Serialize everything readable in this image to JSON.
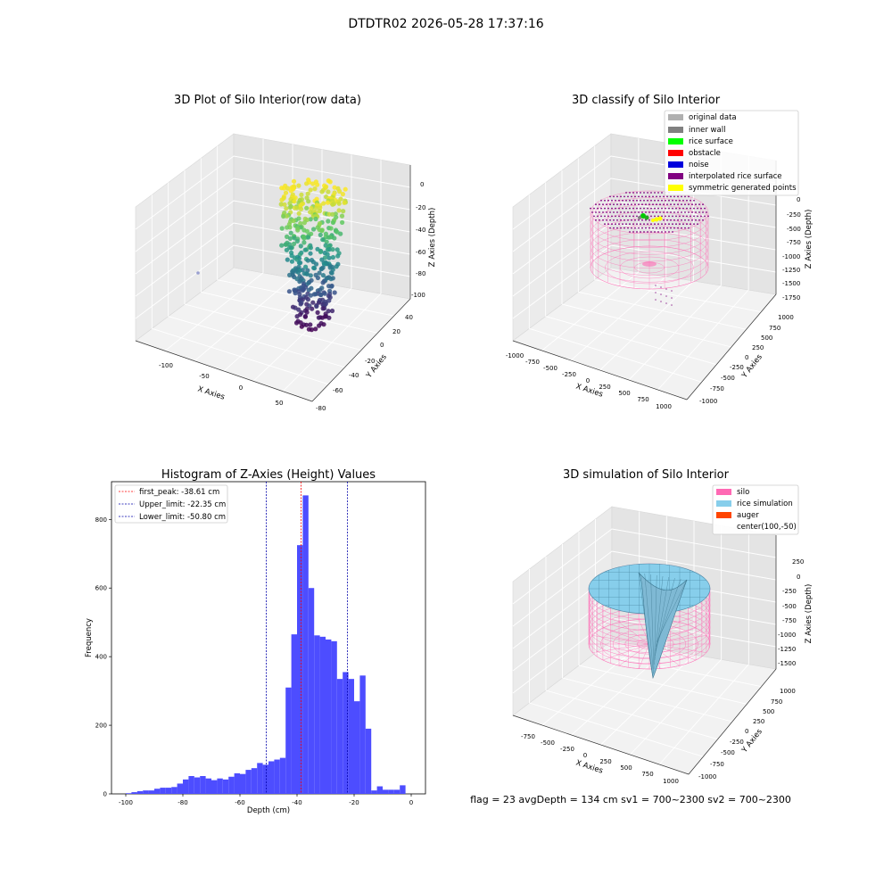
{
  "suptitle": "DTDTR02 2026-05-28 17:37:16",
  "footer": "flag = 23  avgDepth = 134 cm  sv1 = 700~2300  sv2 = 700~2300",
  "colors": {
    "hist_bar": "#4d4dff",
    "first_peak_line": "#ff0000",
    "limit_line": "#0000aa",
    "silo_wire": "#ff69b4",
    "rice_sim": "#87ceeb",
    "auger": "#ff4500"
  },
  "chart_data": [
    {
      "type": "scatter",
      "title": "3D Plot of Silo Interior(row data)",
      "xlabel": "X Axies",
      "ylabel": "Y Axies",
      "zlabel": "Z Axies (Depth)",
      "xticks": [
        "-100",
        "-50",
        "0",
        "50"
      ],
      "yticks": [
        "40",
        "20",
        "0",
        "-20",
        "-40",
        "-60",
        "-80"
      ],
      "zticks": [
        "0",
        "-20",
        "-40",
        "-60",
        "-80",
        "-100"
      ],
      "xlim": [
        -130,
        70
      ],
      "ylim": [
        -80,
        40
      ],
      "zlim": [
        -110,
        0
      ],
      "colormap": "viridis"
    },
    {
      "type": "scatter",
      "title": "3D classify of Silo Interior",
      "xlabel": "X Axies",
      "ylabel": "Y Axies",
      "zlabel": "Z Axies (Depth)",
      "xticks": [
        "-1000",
        "-750",
        "-500",
        "-250",
        "0",
        "250",
        "500",
        "750",
        "1000"
      ],
      "yticks": [
        "1000",
        "750",
        "500",
        "250",
        "0",
        "-250",
        "-500",
        "-750",
        "-1000"
      ],
      "zticks": [
        "0",
        "-250",
        "-500",
        "-750",
        "-1000",
        "-1250",
        "-1500",
        "-1750"
      ],
      "legend": [
        {
          "label": "original data",
          "color": "#b0b0b0"
        },
        {
          "label": "inner wall",
          "color": "#808080"
        },
        {
          "label": "rice surface",
          "color": "#00ff00"
        },
        {
          "label": "obstacle",
          "color": "#ff0000"
        },
        {
          "label": "noise",
          "color": "#0000dd"
        },
        {
          "label": "interpolated rice surface",
          "color": "#800080"
        },
        {
          "label": "symmetric generated points",
          "color": "#ffff00"
        }
      ],
      "legend_position": "top-right"
    },
    {
      "type": "bar",
      "title": "Histogram of Z-Axies (Height) Values",
      "xlabel": "Depth (cm)",
      "ylabel": "Frequency",
      "xlim": [
        -105,
        5
      ],
      "ylim": [
        0,
        910
      ],
      "xticks": [
        -100,
        -80,
        -60,
        -40,
        -20,
        0
      ],
      "yticks": [
        0,
        200,
        400,
        600,
        800
      ],
      "bin_width": 2,
      "bin_starts": [
        -100,
        -98,
        -96,
        -94,
        -92,
        -90,
        -88,
        -86,
        -84,
        -82,
        -80,
        -78,
        -76,
        -74,
        -72,
        -70,
        -68,
        -66,
        -64,
        -62,
        -60,
        -58,
        -56,
        -54,
        -52,
        -50,
        -48,
        -46,
        -44,
        -42,
        -40,
        -38,
        -36,
        -34,
        -32,
        -30,
        -28,
        -26,
        -24,
        -22,
        -20,
        -18,
        -16,
        -14,
        -12,
        -10,
        -8,
        -6,
        -4,
        -2,
        0
      ],
      "values": [
        2,
        5,
        8,
        10,
        10,
        15,
        18,
        18,
        20,
        30,
        42,
        52,
        48,
        52,
        45,
        40,
        45,
        42,
        50,
        60,
        58,
        70,
        75,
        90,
        85,
        95,
        100,
        105,
        310,
        465,
        725,
        870,
        600,
        462,
        458,
        450,
        445,
        335,
        355,
        335,
        270,
        345,
        190,
        10,
        22,
        12,
        12,
        12,
        25,
        0,
        0
      ],
      "vlines": [
        {
          "label": "first_peak: -38.61 cm",
          "x": -38.61,
          "color": "#ff0000"
        },
        {
          "label": "Upper_limit: -22.35 cm",
          "x": -22.35,
          "color": "#0000aa"
        },
        {
          "label": "Lower_limit: -50.80 cm",
          "x": -50.8,
          "color": "#0000aa"
        }
      ],
      "legend_position": "top-left"
    },
    {
      "type": "surface",
      "title": "3D simulation of Silo Interior",
      "xlabel": "X Axies",
      "ylabel": "Y Axies",
      "zlabel": "Z Axies (Depth)",
      "xticks": [
        "-750",
        "-500",
        "-250",
        "0",
        "250",
        "500",
        "750",
        "1000"
      ],
      "yticks": [
        "1000",
        "750",
        "500",
        "250",
        "0",
        "-250",
        "-500",
        "-750",
        "-1000"
      ],
      "zticks": [
        "250",
        "0",
        "-250",
        "-500",
        "-750",
        "-1000",
        "-1250",
        "-1500"
      ],
      "legend": [
        {
          "label": "silo",
          "color": "#ff69b4"
        },
        {
          "label": "rice simulation",
          "color": "#87ceeb"
        },
        {
          "label": "auger",
          "color": "#ff4500"
        },
        {
          "label": "center(100,-50)",
          "color": ""
        }
      ],
      "legend_position": "top-right"
    }
  ]
}
